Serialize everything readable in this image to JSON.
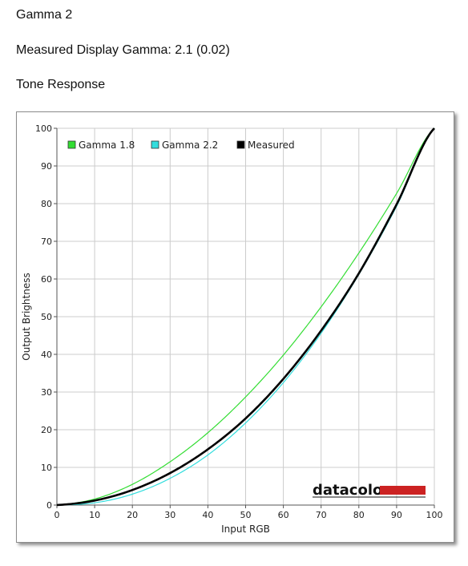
{
  "page": {
    "section_title": "Gamma 2",
    "gamma_label": "Measured Display Gamma: 2.1 (0.02)",
    "chart_heading": "Tone Response"
  },
  "brand": "datacolor",
  "colors": {
    "gamma18": "#33dd33",
    "gamma22": "#33dddd",
    "measured": "#000000",
    "brand_bar": "#cc2222",
    "grid": "#cccccc"
  },
  "chart_data": {
    "type": "line",
    "title": "",
    "xlabel": "Input RGB",
    "ylabel": "Output Brightness",
    "xlim": [
      0,
      100
    ],
    "ylim": [
      0,
      100
    ],
    "xticks": [
      0,
      10,
      20,
      30,
      40,
      50,
      60,
      70,
      80,
      90,
      100
    ],
    "yticks": [
      0,
      10,
      20,
      30,
      40,
      50,
      60,
      70,
      80,
      90,
      100
    ],
    "grid": true,
    "legend_position": "top-left",
    "x": [
      0,
      10,
      20,
      30,
      40,
      50,
      60,
      70,
      80,
      90,
      100
    ],
    "series": [
      {
        "name": "Gamma 1.8",
        "color": "#33dd33",
        "values": [
          0,
          1.6,
          5.5,
          11.5,
          19.2,
          28.7,
          39.8,
          52.6,
          66.9,
          82.7,
          100
        ]
      },
      {
        "name": "Gamma 2.2",
        "color": "#33dddd",
        "values": [
          0,
          0.6,
          2.9,
          7.1,
          13.3,
          21.8,
          32.5,
          45.6,
          61.2,
          79.3,
          100
        ]
      },
      {
        "name": "Measured",
        "color": "#000000",
        "values": [
          0,
          1.2,
          4.0,
          8.5,
          14.8,
          23.0,
          33.5,
          46.3,
          61.5,
          79.8,
          100
        ]
      }
    ]
  }
}
